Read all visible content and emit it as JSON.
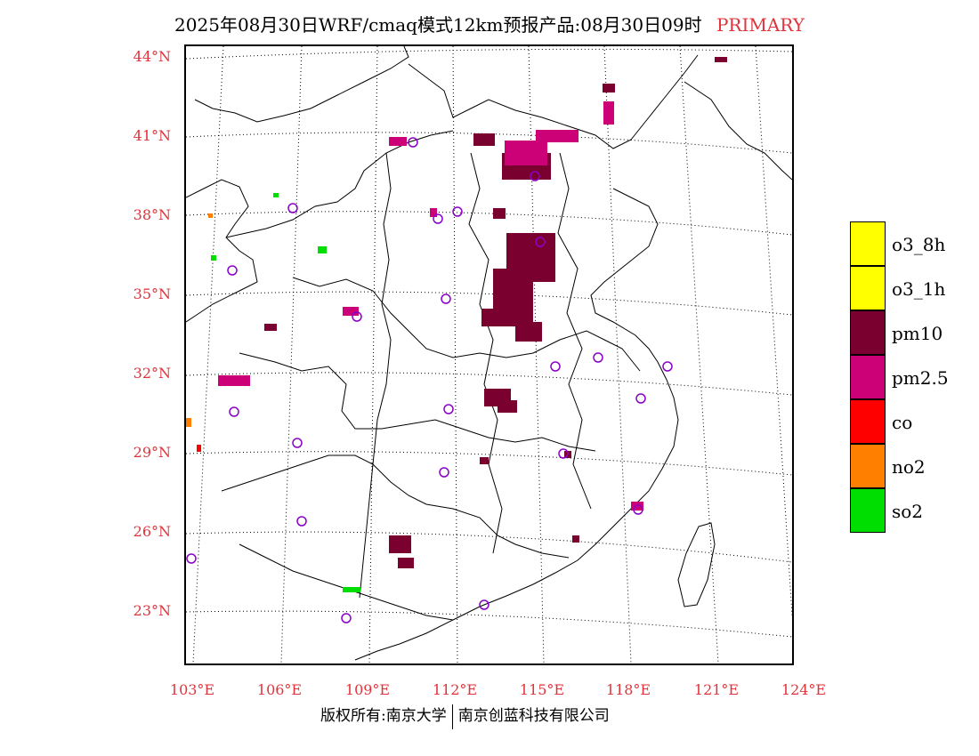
{
  "title": {
    "text": "2025年08月30日WRF/cmaq模式12km预报产品:08月30日09时",
    "label": "PRIMARY"
  },
  "map": {
    "lat_labels": [
      "44°N",
      "41°N",
      "38°N",
      "35°N",
      "32°N",
      "29°N",
      "26°N",
      "23°N"
    ],
    "lon_labels": [
      "103°E",
      "106°E",
      "109°E",
      "112°E",
      "115°E",
      "118°E",
      "121°E",
      "124°E"
    ],
    "colors": {
      "pm10": "#7a0030",
      "pm2_5": "#cc0077",
      "co": "#ff0000",
      "no2": "#ff7f00",
      "so2": "#00dd00",
      "station": "#8a00c8"
    }
  },
  "legend": {
    "items": [
      {
        "label": "o3_8h",
        "color": "#ffff00"
      },
      {
        "label": "o3_1h",
        "color": "#ffff00"
      },
      {
        "label": "pm10",
        "color": "#7a0030"
      },
      {
        "label": "pm2.5",
        "color": "#cc0077"
      },
      {
        "label": "co",
        "color": "#ff0000"
      },
      {
        "label": "no2",
        "color": "#ff7f00"
      },
      {
        "label": "so2",
        "color": "#00dd00"
      }
    ]
  },
  "footer": {
    "left": "版权所有:南京大学",
    "right": "南京创蓝科技有限公司"
  }
}
